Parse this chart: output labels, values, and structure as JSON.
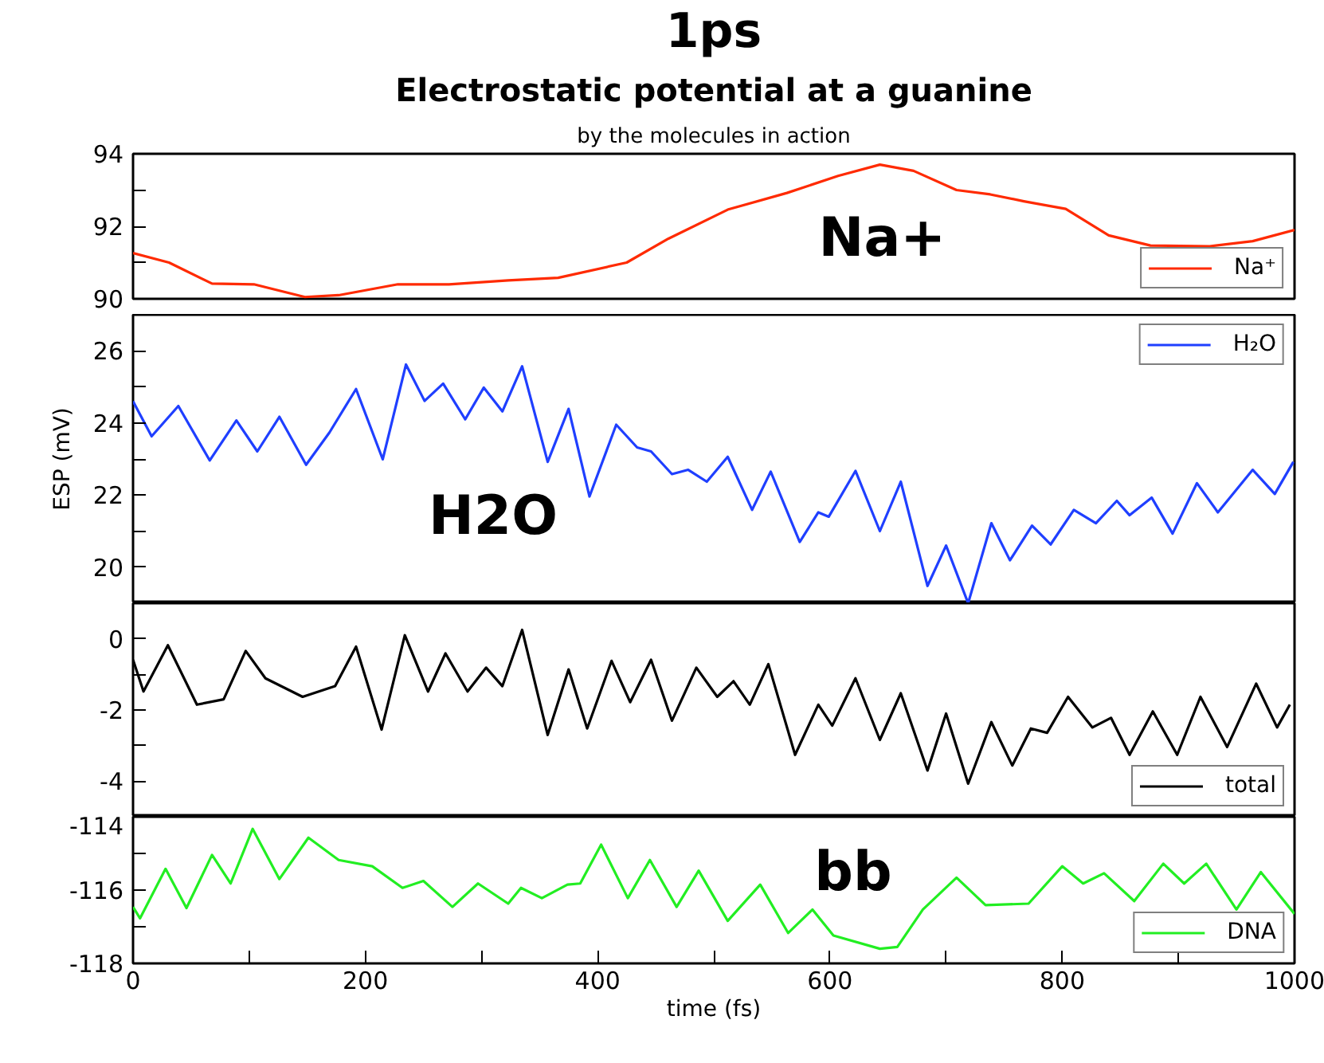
{
  "chart_data": [
    {
      "type": "line",
      "title": "Electrostatic potential at a guanine",
      "subtitle": "by the molecules in action",
      "annotations": [
        "1ps",
        "Na+"
      ],
      "xlim": [
        0,
        1000
      ],
      "ylim": [
        90,
        94
      ],
      "yticks": [
        90,
        {
          "value": 91,
          "label": null
        },
        92,
        {
          "value": 93,
          "label": null
        },
        94
      ],
      "tick_labels": "y",
      "grid": false,
      "legend": "bottom right",
      "series": [
        {
          "name": "Na⁺",
          "color": "#ff2a00",
          "x": [
            0,
            31,
            68,
            104,
            148,
            177,
            228,
            272,
            323,
            366,
            425,
            461,
            512,
            563,
            607,
            643,
            672,
            709,
            738,
            767,
            803,
            840,
            876,
            927,
            964,
            1000
          ],
          "values": [
            91.26,
            91.0,
            90.42,
            90.4,
            90.05,
            90.1,
            90.4,
            90.4,
            90.51,
            90.58,
            91.0,
            91.66,
            92.46,
            92.92,
            93.39,
            93.7,
            93.53,
            93.0,
            92.88,
            92.69,
            92.48,
            91.75,
            91.47,
            91.45,
            91.59,
            91.9
          ]
        }
      ]
    },
    {
      "type": "line",
      "ylabel": "ESP (mV)",
      "annotations": [
        "H2O"
      ],
      "xlim": [
        0,
        1000
      ],
      "ylim": [
        19,
        27
      ],
      "yticks": [
        20,
        {
          "value": 21,
          "label": null
        },
        22,
        {
          "value": 23,
          "label": null
        },
        24,
        {
          "value": 25,
          "label": null
        },
        26
      ],
      "tick_labels": "y",
      "grid": false,
      "legend": "top right",
      "series": [
        {
          "name": "H₂O",
          "color": "#1f3fff",
          "x": [
            0,
            16,
            39,
            66,
            89,
            107,
            126,
            149,
            169,
            192,
            215,
            235,
            251,
            267,
            286,
            302,
            318,
            335,
            357,
            375,
            393,
            416,
            434,
            446,
            464,
            478,
            494,
            512,
            533,
            549,
            574,
            590,
            599,
            622,
            643,
            661,
            684,
            700,
            719,
            739,
            755,
            774,
            790,
            810,
            829,
            847,
            858,
            877,
            895,
            916,
            934,
            964,
            983,
            999
          ],
          "values": [
            24.6,
            23.63,
            24.47,
            22.96,
            24.07,
            23.21,
            24.17,
            22.84,
            23.73,
            24.94,
            22.99,
            25.62,
            24.61,
            25.09,
            24.1,
            24.98,
            24.32,
            25.57,
            22.92,
            24.39,
            21.96,
            23.95,
            23.32,
            23.21,
            22.58,
            22.7,
            22.37,
            23.06,
            21.59,
            22.65,
            20.7,
            21.52,
            21.4,
            22.67,
            21.0,
            22.37,
            19.48,
            20.6,
            19.0,
            21.22,
            20.19,
            21.15,
            20.63,
            21.59,
            21.22,
            21.84,
            21.44,
            21.93,
            20.93,
            22.33,
            21.52,
            22.7,
            22.03,
            22.92
          ]
        }
      ]
    },
    {
      "type": "line",
      "xlim": [
        0,
        1000
      ],
      "ylim": [
        -5,
        1
      ],
      "yticks": [
        {
          "value": -4,
          "label": "-4"
        },
        {
          "value": -3,
          "label": null
        },
        {
          "value": -2,
          "label": "-2"
        },
        {
          "value": -1,
          "label": null
        },
        0
      ],
      "tick_labels": "y",
      "grid": false,
      "legend": "bottom right",
      "series": [
        {
          "name": "total",
          "color": "#000000",
          "x": [
            0,
            9,
            30,
            55,
            78,
            97,
            114,
            146,
            174,
            192,
            214,
            234,
            254,
            269,
            288,
            304,
            318,
            335,
            357,
            375,
            391,
            412,
            428,
            446,
            464,
            485,
            503,
            517,
            531,
            547,
            570,
            590,
            602,
            622,
            643,
            661,
            684,
            700,
            719,
            739,
            757,
            773,
            787,
            805,
            826,
            842,
            858,
            878,
            899,
            919,
            942,
            967,
            985,
            996
          ],
          "values": [
            -0.59,
            -1.48,
            -0.18,
            -1.85,
            -1.7,
            -0.34,
            -1.11,
            -1.63,
            -1.33,
            -0.22,
            -2.55,
            0.1,
            -1.48,
            -0.41,
            -1.48,
            -0.81,
            -1.33,
            0.25,
            -2.7,
            -0.86,
            -2.52,
            -0.62,
            -1.78,
            -0.59,
            -2.3,
            -0.81,
            -1.63,
            -1.19,
            -1.85,
            -0.71,
            -3.26,
            -1.85,
            -2.44,
            -1.11,
            -2.84,
            -1.53,
            -3.7,
            -2.1,
            -4.07,
            -2.34,
            -3.56,
            -2.52,
            -2.64,
            -1.63,
            -2.49,
            -2.22,
            -3.26,
            -2.04,
            -3.26,
            -1.63,
            -3.04,
            -1.26,
            -2.49,
            -1.85
          ]
        }
      ]
    },
    {
      "type": "line",
      "xlabel": "time (fs)",
      "annotations": [
        "bb"
      ],
      "xlim": [
        0,
        1000
      ],
      "xticks": [
        0,
        {
          "value": 100,
          "label": null
        },
        200,
        {
          "value": 300,
          "label": null
        },
        400,
        {
          "value": 500,
          "label": null
        },
        600,
        {
          "value": 700,
          "label": null
        },
        800,
        {
          "value": 900,
          "label": null
        },
        1000
      ],
      "ylim": [
        -118,
        -114
      ],
      "yticks": [
        {
          "value": -118,
          "label": "-118"
        },
        {
          "value": -117,
          "label": null
        },
        {
          "value": -116,
          "label": "-116"
        },
        {
          "value": -115,
          "label": null
        },
        {
          "value": -114,
          "label": "-114"
        }
      ],
      "grid": false,
      "legend": "bottom right",
      "series": [
        {
          "name": "DNA",
          "color": "#22ee22",
          "x": [
            0,
            6,
            28,
            46,
            68,
            84,
            103,
            126,
            151,
            177,
            206,
            232,
            250,
            275,
            297,
            323,
            334,
            352,
            374,
            385,
            403,
            426,
            445,
            468,
            487,
            512,
            540,
            564,
            585,
            603,
            643,
            658,
            680,
            709,
            734,
            771,
            800,
            818,
            836,
            862,
            887,
            905,
            924,
            950,
            971,
            1000
          ],
          "values": [
            -116.46,
            -116.77,
            -115.42,
            -116.49,
            -115.04,
            -115.82,
            -114.33,
            -115.7,
            -114.57,
            -115.18,
            -115.35,
            -115.94,
            -115.75,
            -116.46,
            -115.82,
            -116.37,
            -115.94,
            -116.22,
            -115.85,
            -115.82,
            -114.76,
            -116.22,
            -115.18,
            -116.46,
            -115.47,
            -116.84,
            -115.85,
            -117.17,
            -116.53,
            -117.24,
            -117.6,
            -117.55,
            -116.53,
            -115.66,
            -116.41,
            -116.37,
            -115.35,
            -115.82,
            -115.54,
            -116.3,
            -115.28,
            -115.82,
            -115.28,
            -116.53,
            -115.51,
            -116.65
          ]
        }
      ]
    }
  ]
}
